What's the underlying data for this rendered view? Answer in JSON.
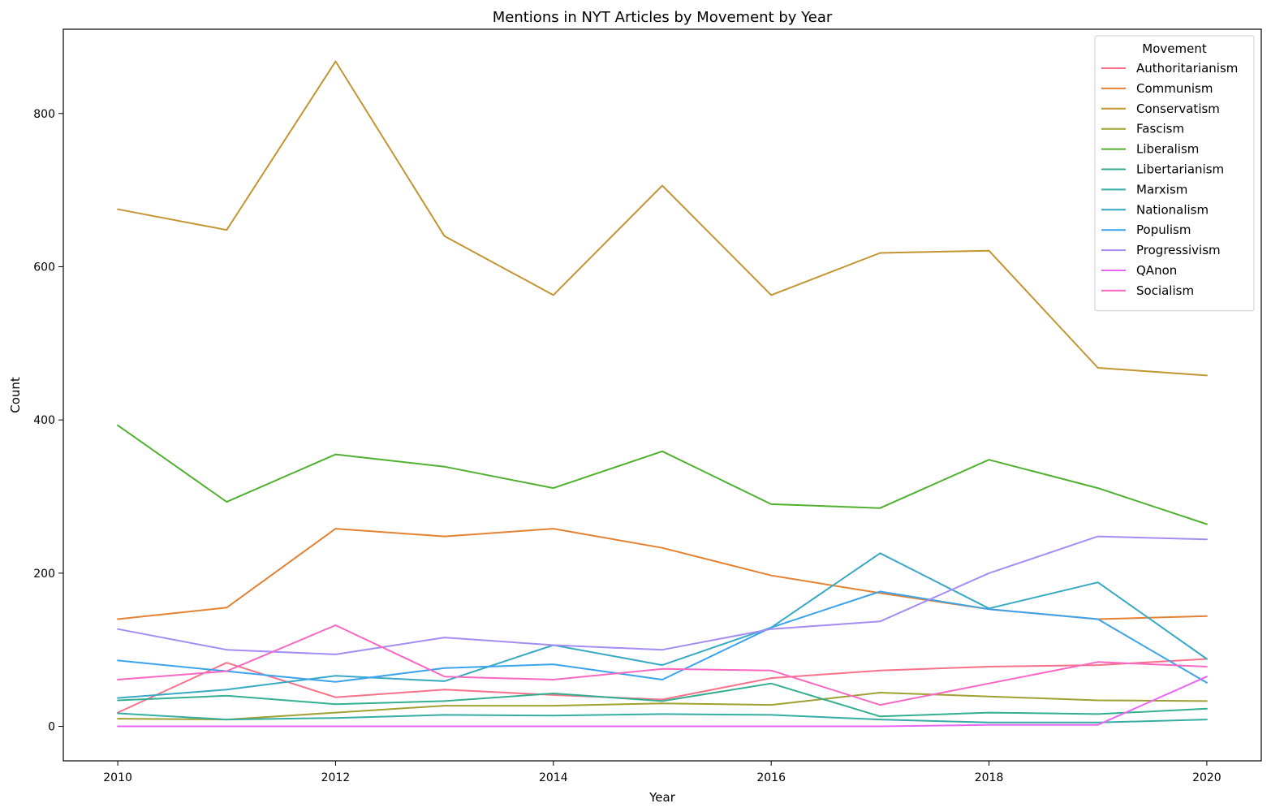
{
  "chart_data": {
    "type": "line",
    "title": "Mentions in NYT Articles by Movement by Year",
    "xlabel": "Year",
    "ylabel": "Count",
    "x": [
      2010,
      2011,
      2012,
      2013,
      2014,
      2015,
      2016,
      2017,
      2018,
      2019,
      2020
    ],
    "xlim": [
      2009.5,
      2020.5
    ],
    "ylim": [
      -45,
      910
    ],
    "xticks": [
      2010,
      2012,
      2014,
      2016,
      2018,
      2020
    ],
    "yticks": [
      0,
      200,
      400,
      600,
      800
    ],
    "grid": false,
    "legend": {
      "title": "Movement",
      "placement": "top-right"
    },
    "series": [
      {
        "name": "Authoritarianism",
        "color": "#f77189",
        "values": [
          18,
          83,
          38,
          48,
          41,
          35,
          63,
          73,
          78,
          80,
          88
        ]
      },
      {
        "name": "Communism",
        "color": "#e48132",
        "values": [
          140,
          155,
          258,
          248,
          258,
          233,
          197,
          174,
          153,
          140,
          144
        ]
      },
      {
        "name": "Conservatism",
        "color": "#c39532",
        "values": [
          675,
          648,
          868,
          640,
          563,
          706,
          563,
          618,
          621,
          468,
          458
        ]
      },
      {
        "name": "Fascism",
        "color": "#a0a032",
        "values": [
          10,
          9,
          18,
          27,
          27,
          30,
          28,
          44,
          39,
          34,
          33
        ]
      },
      {
        "name": "Liberalism",
        "color": "#50b131",
        "values": [
          393,
          293,
          355,
          339,
          311,
          359,
          290,
          285,
          348,
          311,
          264
        ]
      },
      {
        "name": "Libertarianism",
        "color": "#34ae91",
        "values": [
          34,
          40,
          29,
          33,
          43,
          33,
          56,
          13,
          18,
          16,
          23
        ]
      },
      {
        "name": "Marxism",
        "color": "#36ada4",
        "values": [
          17,
          9,
          11,
          15,
          14,
          16,
          15,
          9,
          5,
          5,
          9
        ]
      },
      {
        "name": "Nationalism",
        "color": "#38a9c5",
        "values": [
          37,
          48,
          66,
          59,
          106,
          80,
          129,
          226,
          154,
          188,
          88
        ]
      },
      {
        "name": "Populism",
        "color": "#3ba3ec",
        "values": [
          86,
          72,
          58,
          76,
          81,
          61,
          129,
          176,
          153,
          140,
          57
        ]
      },
      {
        "name": "Progressivism",
        "color": "#a48cf4",
        "values": [
          127,
          100,
          94,
          116,
          106,
          100,
          127,
          137,
          200,
          248,
          244
        ]
      },
      {
        "name": "QAnon",
        "color": "#e866f4",
        "values": [
          0,
          0,
          0,
          0,
          0,
          0,
          0,
          0,
          2,
          2,
          65
        ]
      },
      {
        "name": "Socialism",
        "color": "#f668c2",
        "values": [
          61,
          72,
          132,
          65,
          61,
          75,
          73,
          28,
          56,
          84,
          78
        ]
      }
    ]
  }
}
